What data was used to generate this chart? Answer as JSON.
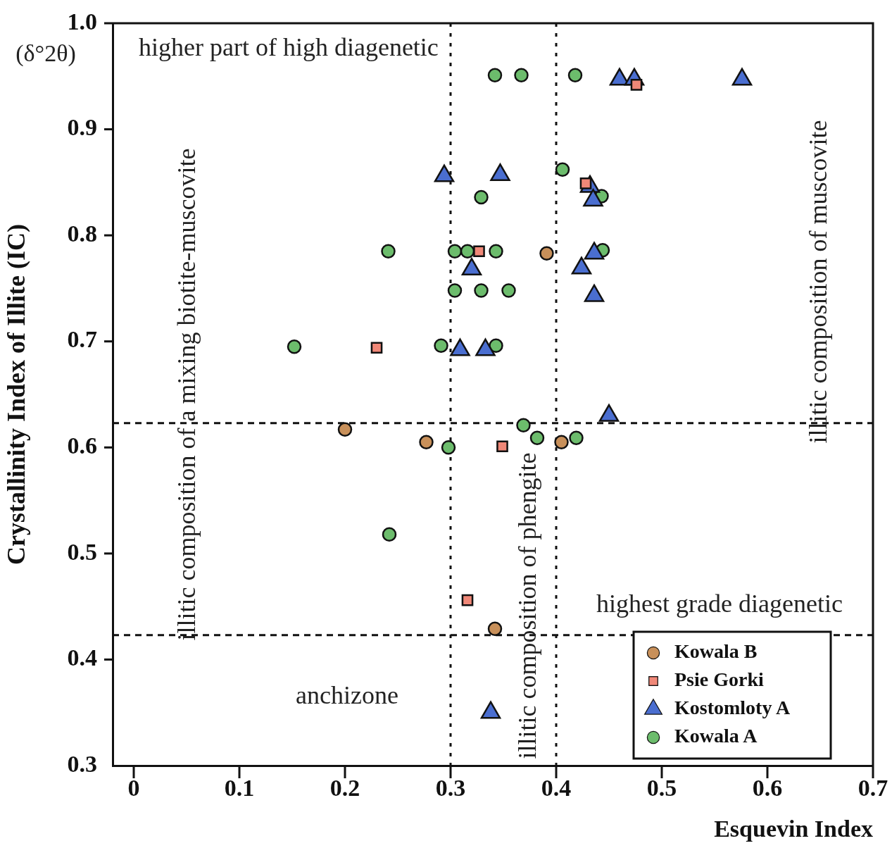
{
  "chart_data": {
    "type": "scatter",
    "xlabel": "Esquevin Index",
    "ylabel": "Crystallinity Index of Illite (IC)",
    "xlim": [
      -0.02,
      0.7
    ],
    "ylim": [
      0.3,
      1.0
    ],
    "xticks": [
      0,
      0.1,
      0.2,
      0.3,
      0.4,
      0.5,
      0.6,
      0.7
    ],
    "yticks": [
      0.3,
      0.4,
      0.5,
      0.6,
      0.7,
      0.8,
      0.9,
      {
        "value": 1,
        "label": "1.0"
      }
    ],
    "grid": false,
    "legend": "bottom right",
    "series": [
      {
        "name": "Kowala B",
        "color": "#c8905a",
        "marker": "circle",
        "x": [
          0.391,
          0.2,
          0.277,
          0.405,
          0.342
        ],
        "values": [
          0.783,
          0.617,
          0.605,
          0.605,
          0.429
        ]
      },
      {
        "name": "Psie Gorki",
        "color": "#f08878",
        "marker": "square",
        "x": [
          0.327,
          0.23,
          0.428,
          0.476,
          0.349,
          0.316
        ],
        "values": [
          0.785,
          0.694,
          0.849,
          0.942,
          0.601,
          0.456
        ]
      },
      {
        "name": "Kostomloty A",
        "color": "#4a6ed0",
        "marker": "triangle",
        "x": [
          0.294,
          0.347,
          0.46,
          0.474,
          0.576,
          0.432,
          0.435,
          0.436,
          0.424,
          0.32,
          0.436,
          0.309,
          0.333,
          0.45,
          0.338
        ],
        "values": [
          0.856,
          0.857,
          0.947,
          0.947,
          0.947,
          0.846,
          0.833,
          0.783,
          0.769,
          0.768,
          0.743,
          0.692,
          0.692,
          0.63,
          0.35
        ]
      },
      {
        "name": "Kowala A",
        "color": "#6cbc6c",
        "marker": "circle",
        "x": [
          0.342,
          0.367,
          0.418,
          0.406,
          0.329,
          0.443,
          0.241,
          0.304,
          0.316,
          0.343,
          0.444,
          0.304,
          0.329,
          0.355,
          0.152,
          0.291,
          0.343,
          0.369,
          0.382,
          0.419,
          0.298,
          0.242
        ],
        "values": [
          0.951,
          0.951,
          0.951,
          0.862,
          0.836,
          0.837,
          0.785,
          0.785,
          0.785,
          0.785,
          0.786,
          0.748,
          0.748,
          0.748,
          0.695,
          0.696,
          0.696,
          0.621,
          0.609,
          0.609,
          0.6,
          0.518
        ]
      }
    ],
    "ref_lines": [
      {
        "axis": "x",
        "value": 0.3,
        "line_style": "dotted"
      },
      {
        "axis": "x",
        "value": 0.4,
        "line_style": "dotted"
      },
      {
        "axis": "y",
        "value": 0.623,
        "line_style": "dashed"
      },
      {
        "axis": "y",
        "value": 0.423,
        "line_style": "dashed"
      }
    ],
    "annotations": [
      "higher part of high diagenetic",
      "illitic composition of a mixing biotite-muscovite",
      "illitic composition of phengite",
      "illitic composition of muscovite",
      "highest grade diagenetic",
      "anchizone",
      "(δ°2θ)"
    ]
  }
}
